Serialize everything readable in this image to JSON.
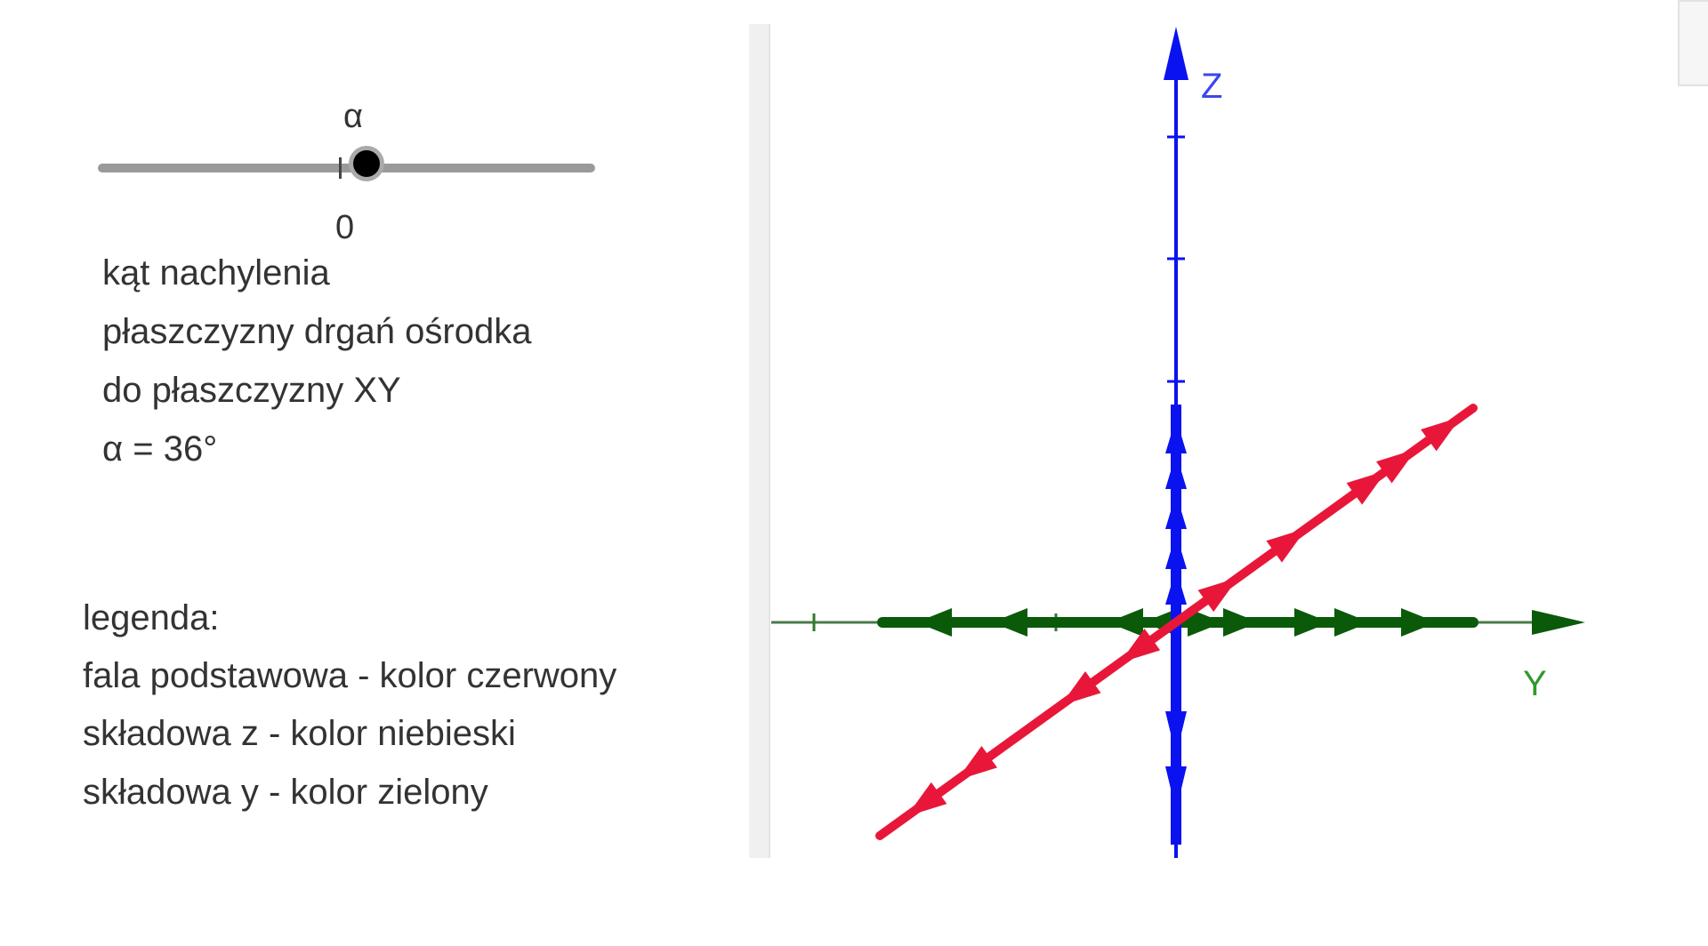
{
  "slider": {
    "label": "α",
    "min_label": "0",
    "value_deg": 36
  },
  "description": [
    "kąt nachylenia",
    "płaszczyzny drgań ośrodka",
    "do płaszczyzny XY",
    "α = 36°"
  ],
  "legend": [
    "legenda:",
    "fala podstawowa - kolor czerwony",
    "składowa z - kolor niebieski",
    "składowa y - kolor zielony"
  ],
  "axes": {
    "z_label": "Z",
    "y_label": "Y"
  },
  "colors": {
    "base_wave": "#e8173a",
    "z_component": "#0b12f0",
    "y_component": "#0a5a0a",
    "y_axis_label": "#2e9a2e",
    "z_axis_label": "#3b46f0"
  }
}
